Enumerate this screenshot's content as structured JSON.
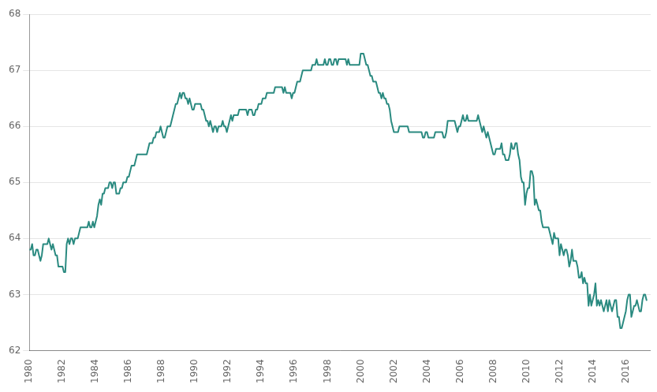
{
  "chart_data": {
    "type": "line",
    "color": "#2a8a80",
    "grid": "y",
    "xlim": [
      1980,
      2017.5
    ],
    "xticks": [
      1980,
      1982,
      1984,
      1986,
      1988,
      1990,
      1992,
      1994,
      1996,
      1998,
      2000,
      2002,
      2004,
      2006,
      2008,
      2010,
      2012,
      2014,
      2016
    ],
    "ylim": [
      62,
      68
    ],
    "yticks": [
      62,
      63,
      64,
      65,
      66,
      67,
      68
    ],
    "x": [
      1980.0,
      1980.083,
      1980.167,
      1980.25,
      1980.333,
      1980.417,
      1980.5,
      1980.583,
      1980.667,
      1980.75,
      1980.833,
      1980.917,
      1981.0,
      1981.083,
      1981.167,
      1981.25,
      1981.333,
      1981.417,
      1981.5,
      1981.583,
      1981.667,
      1981.75,
      1981.833,
      1981.917,
      1982.0,
      1982.083,
      1982.167,
      1982.25,
      1982.333,
      1982.417,
      1982.5,
      1982.583,
      1982.667,
      1982.75,
      1982.833,
      1982.917,
      1983.0,
      1983.083,
      1983.167,
      1983.25,
      1983.333,
      1983.417,
      1983.5,
      1983.583,
      1983.667,
      1983.75,
      1983.833,
      1983.917,
      1984.0,
      1984.083,
      1984.167,
      1984.25,
      1984.333,
      1984.417,
      1984.5,
      1984.583,
      1984.667,
      1984.75,
      1984.833,
      1984.917,
      1985.0,
      1985.083,
      1985.167,
      1985.25,
      1985.333,
      1985.417,
      1985.5,
      1985.583,
      1985.667,
      1985.75,
      1985.833,
      1985.917,
      1986.0,
      1986.083,
      1986.167,
      1986.25,
      1986.333,
      1986.417,
      1986.5,
      1986.583,
      1986.667,
      1986.75,
      1986.833,
      1986.917,
      1987.0,
      1987.083,
      1987.167,
      1987.25,
      1987.333,
      1987.417,
      1987.5,
      1987.583,
      1987.667,
      1987.75,
      1987.833,
      1987.917,
      1988.0,
      1988.083,
      1988.167,
      1988.25,
      1988.333,
      1988.417,
      1988.5,
      1988.583,
      1988.667,
      1988.75,
      1988.833,
      1988.917,
      1989.0,
      1989.083,
      1989.167,
      1989.25,
      1989.333,
      1989.417,
      1989.5,
      1989.583,
      1989.667,
      1989.75,
      1989.833,
      1989.917,
      1990.0,
      1990.083,
      1990.167,
      1990.25,
      1990.333,
      1990.417,
      1990.5,
      1990.583,
      1990.667,
      1990.75,
      1990.833,
      1990.917,
      1991.0,
      1991.083,
      1991.167,
      1991.25,
      1991.333,
      1991.417,
      1991.5,
      1991.583,
      1991.667,
      1991.75,
      1991.833,
      1991.917,
      1992.0,
      1992.083,
      1992.167,
      1992.25,
      1992.333,
      1992.417,
      1992.5,
      1992.583,
      1992.667,
      1992.75,
      1992.833,
      1992.917,
      1993.0,
      1993.083,
      1993.167,
      1993.25,
      1993.333,
      1993.417,
      1993.5,
      1993.583,
      1993.667,
      1993.75,
      1993.833,
      1993.917,
      1994.0,
      1994.083,
      1994.167,
      1994.25,
      1994.333,
      1994.417,
      1994.5,
      1994.583,
      1994.667,
      1994.75,
      1994.833,
      1994.917,
      1995.0,
      1995.083,
      1995.167,
      1995.25,
      1995.333,
      1995.417,
      1995.5,
      1995.583,
      1995.667,
      1995.75,
      1995.833,
      1995.917,
      1996.0,
      1996.083,
      1996.167,
      1996.25,
      1996.333,
      1996.417,
      1996.5,
      1996.583,
      1996.667,
      1996.75,
      1996.833,
      1996.917,
      1997.0,
      1997.083,
      1997.167,
      1997.25,
      1997.333,
      1997.417,
      1997.5,
      1997.583,
      1997.667,
      1997.75,
      1997.833,
      1997.917,
      1998.0,
      1998.083,
      1998.167,
      1998.25,
      1998.333,
      1998.417,
      1998.5,
      1998.583,
      1998.667,
      1998.75,
      1998.833,
      1998.917,
      1999.0,
      1999.083,
      1999.167,
      1999.25,
      1999.333,
      1999.417,
      1999.5,
      1999.583,
      1999.667,
      1999.75,
      1999.833,
      1999.917,
      2000.0,
      2000.083,
      2000.167,
      2000.25,
      2000.333,
      2000.417,
      2000.5,
      2000.583,
      2000.667,
      2000.75,
      2000.833,
      2000.917,
      2001.0,
      2001.083,
      2001.167,
      2001.25,
      2001.333,
      2001.417,
      2001.5,
      2001.583,
      2001.667,
      2001.75,
      2001.833,
      2001.917,
      2002.0,
      2002.083,
      2002.167,
      2002.25,
      2002.333,
      2002.417,
      2002.5,
      2002.583,
      2002.667,
      2002.75,
      2002.833,
      2002.917,
      2003.0,
      2003.083,
      2003.167,
      2003.25,
      2003.333,
      2003.417,
      2003.5,
      2003.583,
      2003.667,
      2003.75,
      2003.833,
      2003.917,
      2004.0,
      2004.083,
      2004.167,
      2004.25,
      2004.333,
      2004.417,
      2004.5,
      2004.583,
      2004.667,
      2004.75,
      2004.833,
      2004.917,
      2005.0,
      2005.083,
      2005.167,
      2005.25,
      2005.333,
      2005.417,
      2005.5,
      2005.583,
      2005.667,
      2005.75,
      2005.833,
      2005.917,
      2006.0,
      2006.083,
      2006.167,
      2006.25,
      2006.333,
      2006.417,
      2006.5,
      2006.583,
      2006.667,
      2006.75,
      2006.833,
      2006.917,
      2007.0,
      2007.083,
      2007.167,
      2007.25,
      2007.333,
      2007.417,
      2007.5,
      2007.583,
      2007.667,
      2007.75,
      2007.833,
      2007.917,
      2008.0,
      2008.083,
      2008.167,
      2008.25,
      2008.333,
      2008.417,
      2008.5,
      2008.583,
      2008.667,
      2008.75,
      2008.833,
      2008.917,
      2009.0,
      2009.083,
      2009.167,
      2009.25,
      2009.333,
      2009.417,
      2009.5,
      2009.583,
      2009.667,
      2009.75,
      2009.833,
      2009.917,
      2010.0,
      2010.083,
      2010.167,
      2010.25,
      2010.333,
      2010.417,
      2010.5,
      2010.583,
      2010.667,
      2010.75,
      2010.833,
      2010.917,
      2011.0,
      2011.083,
      2011.167,
      2011.25,
      2011.333,
      2011.417,
      2011.5,
      2011.583,
      2011.667,
      2011.75,
      2011.833,
      2011.917,
      2012.0,
      2012.083,
      2012.167,
      2012.25,
      2012.333,
      2012.417,
      2012.5,
      2012.583,
      2012.667,
      2012.75,
      2012.833,
      2012.917,
      2013.0,
      2013.083,
      2013.167,
      2013.25,
      2013.333,
      2013.417,
      2013.5,
      2013.583,
      2013.667,
      2013.75,
      2013.833,
      2013.917,
      2014.0,
      2014.083,
      2014.167,
      2014.25,
      2014.333,
      2014.417,
      2014.5,
      2014.583,
      2014.667,
      2014.75,
      2014.833,
      2014.917,
      2015.0,
      2015.083,
      2015.167,
      2015.25,
      2015.333,
      2015.417,
      2015.5,
      2015.583,
      2015.667,
      2015.75,
      2015.833,
      2015.917,
      2016.0,
      2016.083,
      2016.167,
      2016.25,
      2016.333,
      2016.417,
      2016.5,
      2016.583,
      2016.667,
      2016.75,
      2016.833,
      2016.917,
      2017.0,
      2017.083,
      2017.167,
      2017.25
    ],
    "values": [
      63.8,
      63.8,
      63.9,
      63.7,
      63.7,
      63.8,
      63.8,
      63.7,
      63.6,
      63.7,
      63.9,
      63.9,
      63.9,
      63.9,
      64.0,
      63.9,
      63.8,
      63.9,
      63.8,
      63.7,
      63.7,
      63.5,
      63.5,
      63.5,
      63.5,
      63.4,
      63.4,
      63.9,
      64.0,
      63.9,
      64.0,
      64.0,
      63.9,
      64.0,
      64.0,
      64.0,
      64.1,
      64.2,
      64.2,
      64.2,
      64.2,
      64.2,
      64.2,
      64.3,
      64.2,
      64.2,
      64.3,
      64.2,
      64.3,
      64.4,
      64.6,
      64.7,
      64.6,
      64.8,
      64.8,
      64.9,
      64.9,
      64.9,
      65.0,
      65.0,
      64.9,
      65.0,
      65.0,
      64.8,
      64.8,
      64.8,
      64.9,
      64.9,
      65.0,
      65.0,
      65.0,
      65.1,
      65.1,
      65.2,
      65.3,
      65.3,
      65.3,
      65.4,
      65.5,
      65.5,
      65.5,
      65.5,
      65.5,
      65.5,
      65.5,
      65.5,
      65.6,
      65.7,
      65.7,
      65.7,
      65.8,
      65.8,
      65.9,
      65.9,
      65.9,
      66.0,
      65.9,
      65.8,
      65.8,
      65.9,
      66.0,
      66.0,
      66.0,
      66.1,
      66.2,
      66.3,
      66.4,
      66.4,
      66.5,
      66.6,
      66.5,
      66.6,
      66.6,
      66.5,
      66.5,
      66.4,
      66.5,
      66.4,
      66.3,
      66.3,
      66.4,
      66.4,
      66.4,
      66.4,
      66.4,
      66.3,
      66.3,
      66.2,
      66.1,
      66.1,
      66.0,
      66.1,
      66.0,
      65.9,
      66.0,
      66.0,
      65.9,
      66.0,
      66.0,
      66.0,
      66.1,
      66.0,
      66.0,
      65.9,
      66.0,
      66.1,
      66.2,
      66.1,
      66.2,
      66.2,
      66.2,
      66.2,
      66.3,
      66.3,
      66.3,
      66.3,
      66.3,
      66.3,
      66.2,
      66.3,
      66.3,
      66.3,
      66.2,
      66.2,
      66.3,
      66.3,
      66.4,
      66.4,
      66.4,
      66.5,
      66.5,
      66.5,
      66.6,
      66.6,
      66.6,
      66.6,
      66.6,
      66.6,
      66.7,
      66.7,
      66.7,
      66.7,
      66.7,
      66.7,
      66.6,
      66.7,
      66.6,
      66.6,
      66.6,
      66.6,
      66.5,
      66.6,
      66.6,
      66.7,
      66.8,
      66.8,
      66.8,
      66.9,
      67.0,
      67.0,
      67.0,
      67.0,
      67.0,
      67.0,
      67.0,
      67.1,
      67.1,
      67.1,
      67.2,
      67.1,
      67.1,
      67.1,
      67.1,
      67.1,
      67.2,
      67.1,
      67.1,
      67.2,
      67.2,
      67.1,
      67.1,
      67.2,
      67.2,
      67.1,
      67.2,
      67.2,
      67.2,
      67.2,
      67.2,
      67.2,
      67.1,
      67.2,
      67.1,
      67.1,
      67.1,
      67.1,
      67.1,
      67.1,
      67.1,
      67.1,
      67.3,
      67.3,
      67.3,
      67.2,
      67.1,
      67.1,
      67.0,
      66.9,
      66.9,
      66.8,
      66.8,
      66.8,
      66.7,
      66.6,
      66.6,
      66.5,
      66.6,
      66.5,
      66.5,
      66.4,
      66.4,
      66.3,
      66.1,
      66.0,
      65.9,
      65.9,
      65.9,
      65.9,
      66.0,
      66.0,
      66.0,
      66.0,
      66.0,
      66.0,
      66.0,
      65.9,
      65.9,
      65.9,
      65.9,
      65.9,
      65.9,
      65.9,
      65.9,
      65.9,
      65.9,
      65.8,
      65.8,
      65.9,
      65.9,
      65.8,
      65.8,
      65.8,
      65.8,
      65.8,
      65.9,
      65.9,
      65.9,
      65.9,
      65.9,
      65.9,
      65.8,
      65.8,
      65.9,
      66.1,
      66.1,
      66.1,
      66.1,
      66.1,
      66.1,
      66.0,
      65.9,
      66.0,
      66.0,
      66.1,
      66.2,
      66.1,
      66.1,
      66.2,
      66.1,
      66.1,
      66.1,
      66.1,
      66.1,
      66.1,
      66.1,
      66.2,
      66.1,
      66.0,
      65.9,
      66.0,
      65.9,
      65.8,
      65.9,
      65.8,
      65.7,
      65.6,
      65.5,
      65.5,
      65.6,
      65.6,
      65.6,
      65.6,
      65.7,
      65.5,
      65.5,
      65.4,
      65.4,
      65.4,
      65.5,
      65.7,
      65.6,
      65.6,
      65.7,
      65.7,
      65.5,
      65.4,
      65.1,
      65.0,
      65.0,
      64.6,
      64.8,
      64.9,
      64.9,
      65.2,
      65.2,
      65.1,
      64.6,
      64.7,
      64.6,
      64.5,
      64.5,
      64.3,
      64.2,
      64.2,
      64.2,
      64.2,
      64.2,
      64.1,
      64.0,
      63.9,
      64.1,
      64.0,
      64.0,
      64.0,
      63.7,
      63.9,
      63.8,
      63.7,
      63.8,
      63.8,
      63.7,
      63.5,
      63.6,
      63.8,
      63.6,
      63.6,
      63.6,
      63.5,
      63.3,
      63.3,
      63.4,
      63.2,
      63.3,
      63.2,
      63.2,
      62.8,
      63.0,
      62.8,
      62.9,
      63.0,
      63.2,
      62.8,
      62.9,
      62.8,
      62.9,
      62.8,
      62.7,
      62.8,
      62.9,
      62.7,
      62.9,
      62.8,
      62.7,
      62.8,
      62.9,
      62.9,
      62.6,
      62.6,
      62.4,
      62.4,
      62.5,
      62.6,
      62.7,
      62.9,
      63.0,
      63.0,
      62.6,
      62.7,
      62.8,
      62.8,
      62.9,
      62.8,
      62.7,
      62.7,
      62.9,
      63.0,
      63.0,
      62.9
    ]
  }
}
